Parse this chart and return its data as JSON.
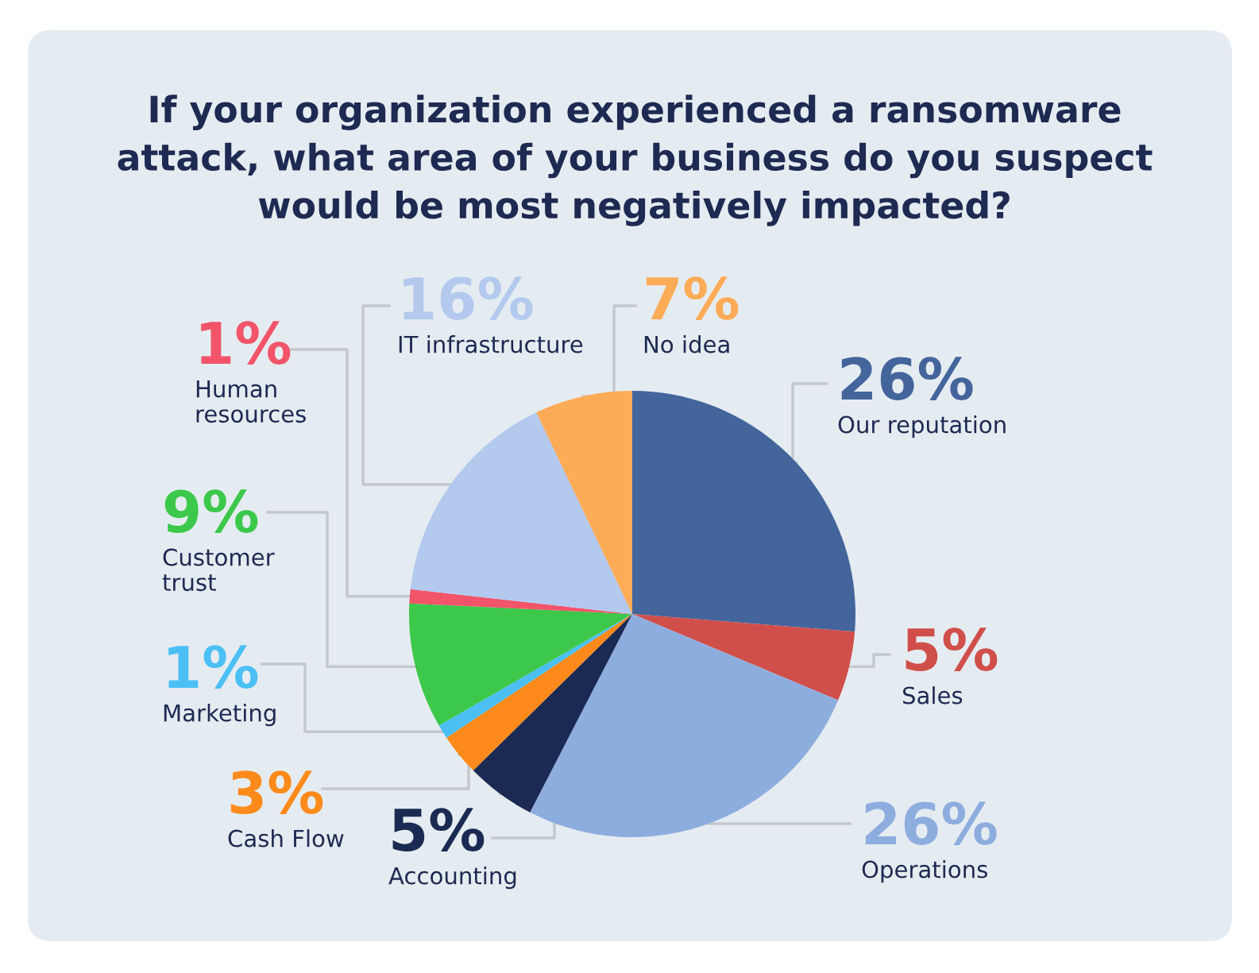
{
  "chart_data": {
    "type": "pie",
    "title": "If your organization experienced a ransomware\nattack, what area of your business do you suspect\nwould be most negatively impacted?",
    "categories": [
      "Our reputation",
      "Sales",
      "Operations",
      "Accounting",
      "Cash Flow",
      "Marketing",
      "Customer trust",
      "Human resources",
      "IT infrastructure",
      "No idea"
    ],
    "values": [
      26,
      5,
      26,
      5,
      3,
      1,
      9,
      1,
      16,
      7
    ],
    "value_labels": [
      "26%",
      "5%",
      "26%",
      "5%",
      "3%",
      "1%",
      "9%",
      "1%",
      "16%",
      "7%"
    ],
    "colors": [
      "#44659c",
      "#d14f4a",
      "#8eaddf",
      "#1b2a52",
      "#fd8a1a",
      "#4cc0f5",
      "#3cc84a",
      "#f2546a",
      "#b3c9ee",
      "#fdab56"
    ],
    "legend": false
  }
}
